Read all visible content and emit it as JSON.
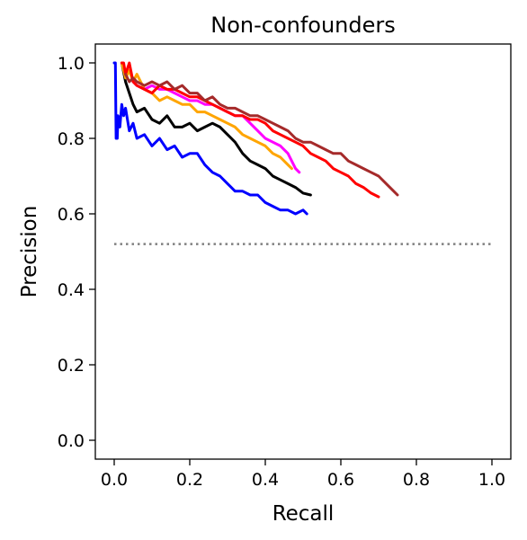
{
  "chart_data": {
    "type": "line",
    "title": "Non-confounders",
    "xlabel": "Recall",
    "ylabel": "Precision",
    "xlim": [
      -0.05,
      1.05
    ],
    "ylim": [
      -0.05,
      1.05
    ],
    "xticks": [
      "0.0",
      "0.2",
      "0.4",
      "0.6",
      "0.8",
      "1.0"
    ],
    "yticks": [
      "0.0",
      "0.2",
      "0.4",
      "0.6",
      "0.8",
      "1.0"
    ],
    "grid": false,
    "legend": "none",
    "baseline": {
      "x": [
        0.0,
        1.0
      ],
      "y": 0.52,
      "color": "#808080",
      "style": "dotted"
    },
    "series": [
      {
        "color": "#0000ff",
        "x": [
          0.0,
          0.003,
          0.005,
          0.008,
          0.01,
          0.015,
          0.02,
          0.025,
          0.03,
          0.04,
          0.05,
          0.06,
          0.08,
          0.1,
          0.12,
          0.14,
          0.16,
          0.18,
          0.2,
          0.22,
          0.24,
          0.26,
          0.28,
          0.3,
          0.32,
          0.34,
          0.36,
          0.38,
          0.4,
          0.42,
          0.44,
          0.46,
          0.48,
          0.5,
          0.51
        ],
        "y": [
          1.0,
          1.0,
          0.8,
          0.8,
          0.86,
          0.83,
          0.89,
          0.86,
          0.88,
          0.82,
          0.84,
          0.8,
          0.81,
          0.78,
          0.8,
          0.77,
          0.78,
          0.75,
          0.76,
          0.76,
          0.73,
          0.71,
          0.7,
          0.68,
          0.66,
          0.66,
          0.65,
          0.65,
          0.63,
          0.62,
          0.61,
          0.61,
          0.6,
          0.61,
          0.6
        ]
      },
      {
        "color": "#000000",
        "x": [
          0.02,
          0.03,
          0.04,
          0.05,
          0.06,
          0.08,
          0.1,
          0.12,
          0.14,
          0.16,
          0.18,
          0.2,
          0.22,
          0.24,
          0.26,
          0.28,
          0.3,
          0.32,
          0.34,
          0.36,
          0.38,
          0.4,
          0.42,
          0.44,
          0.46,
          0.48,
          0.5,
          0.52
        ],
        "y": [
          1.0,
          0.95,
          0.92,
          0.89,
          0.87,
          0.88,
          0.85,
          0.84,
          0.86,
          0.83,
          0.83,
          0.84,
          0.82,
          0.83,
          0.84,
          0.83,
          0.81,
          0.79,
          0.76,
          0.74,
          0.73,
          0.72,
          0.7,
          0.69,
          0.68,
          0.67,
          0.655,
          0.65
        ]
      },
      {
        "color": "#ffa500",
        "x": [
          0.02,
          0.03,
          0.04,
          0.05,
          0.06,
          0.08,
          0.1,
          0.12,
          0.14,
          0.16,
          0.18,
          0.2,
          0.22,
          0.24,
          0.26,
          0.28,
          0.3,
          0.32,
          0.34,
          0.36,
          0.38,
          0.4,
          0.42,
          0.44,
          0.46,
          0.47
        ],
        "y": [
          1.0,
          0.96,
          0.98,
          0.95,
          0.97,
          0.93,
          0.92,
          0.9,
          0.91,
          0.9,
          0.89,
          0.89,
          0.87,
          0.87,
          0.86,
          0.85,
          0.84,
          0.83,
          0.81,
          0.8,
          0.79,
          0.78,
          0.76,
          0.75,
          0.73,
          0.72
        ]
      },
      {
        "color": "#ff00ff",
        "x": [
          0.05,
          0.06,
          0.08,
          0.1,
          0.12,
          0.14,
          0.16,
          0.18,
          0.2,
          0.22,
          0.24,
          0.26,
          0.28,
          0.3,
          0.32,
          0.34,
          0.36,
          0.38,
          0.4,
          0.42,
          0.44,
          0.46,
          0.48,
          0.49
        ],
        "y": [
          0.95,
          0.94,
          0.93,
          0.94,
          0.93,
          0.93,
          0.92,
          0.91,
          0.9,
          0.9,
          0.89,
          0.89,
          0.88,
          0.87,
          0.86,
          0.86,
          0.84,
          0.82,
          0.8,
          0.79,
          0.78,
          0.76,
          0.72,
          0.71
        ]
      },
      {
        "color": "#ff0000",
        "x": [
          0.02,
          0.025,
          0.03,
          0.04,
          0.05,
          0.06,
          0.08,
          0.1,
          0.12,
          0.14,
          0.16,
          0.18,
          0.2,
          0.22,
          0.24,
          0.26,
          0.28,
          0.3,
          0.32,
          0.34,
          0.36,
          0.38,
          0.4,
          0.42,
          0.44,
          0.46,
          0.48,
          0.5,
          0.52,
          0.54,
          0.56,
          0.58,
          0.6,
          0.62,
          0.64,
          0.66,
          0.68,
          0.7
        ],
        "y": [
          1.0,
          1.0,
          0.97,
          1.0,
          0.95,
          0.94,
          0.93,
          0.92,
          0.94,
          0.93,
          0.93,
          0.92,
          0.91,
          0.91,
          0.9,
          0.89,
          0.88,
          0.87,
          0.86,
          0.86,
          0.85,
          0.85,
          0.84,
          0.82,
          0.81,
          0.8,
          0.79,
          0.78,
          0.76,
          0.75,
          0.74,
          0.72,
          0.71,
          0.7,
          0.68,
          0.67,
          0.655,
          0.645
        ]
      },
      {
        "color": "#a52a2a",
        "x": [
          0.03,
          0.04,
          0.05,
          0.06,
          0.08,
          0.1,
          0.12,
          0.14,
          0.16,
          0.18,
          0.2,
          0.22,
          0.24,
          0.26,
          0.28,
          0.3,
          0.32,
          0.34,
          0.36,
          0.38,
          0.4,
          0.42,
          0.44,
          0.46,
          0.48,
          0.5,
          0.52,
          0.54,
          0.56,
          0.58,
          0.6,
          0.62,
          0.64,
          0.66,
          0.68,
          0.7,
          0.72,
          0.74,
          0.75
        ],
        "y": [
          0.97,
          0.95,
          0.96,
          0.95,
          0.94,
          0.95,
          0.94,
          0.95,
          0.93,
          0.94,
          0.92,
          0.92,
          0.9,
          0.91,
          0.89,
          0.88,
          0.88,
          0.87,
          0.86,
          0.86,
          0.85,
          0.84,
          0.83,
          0.82,
          0.8,
          0.79,
          0.79,
          0.78,
          0.77,
          0.76,
          0.76,
          0.74,
          0.73,
          0.72,
          0.71,
          0.7,
          0.68,
          0.66,
          0.65
        ]
      }
    ]
  }
}
